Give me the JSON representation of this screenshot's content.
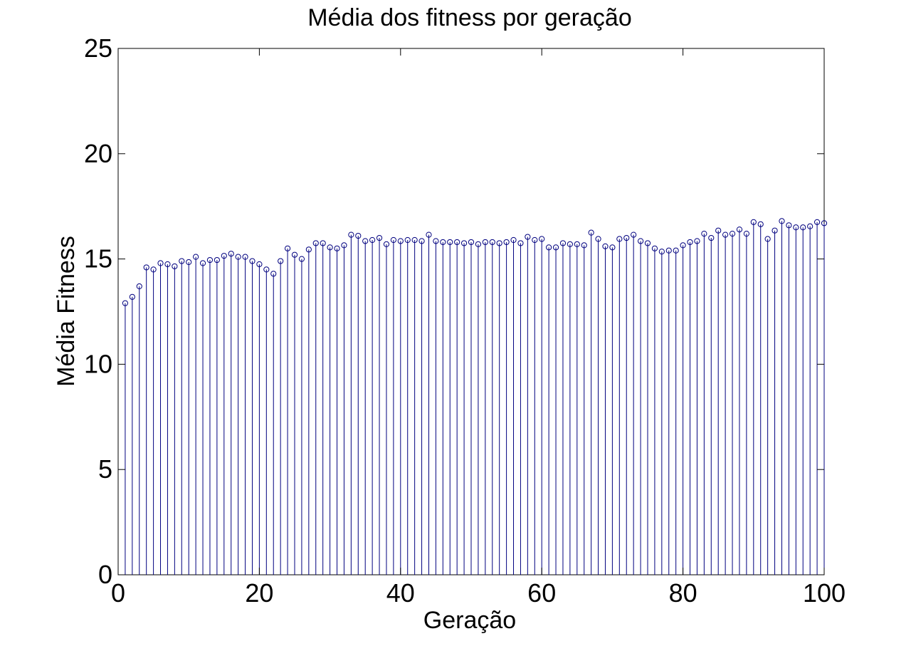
{
  "chart_data": {
    "type": "stem",
    "title": "Média dos fitness por geração",
    "xlabel": "Geração",
    "ylabel": "Média Fitness",
    "xlim": [
      0,
      100
    ],
    "ylim": [
      0,
      25
    ],
    "xticks": [
      "0",
      "20",
      "40",
      "60",
      "80",
      "100"
    ],
    "yticks": [
      "0",
      "5",
      "10",
      "15",
      "20",
      "25"
    ],
    "grid": false,
    "marker": "circle",
    "color": "#00007f",
    "x": [
      1,
      2,
      3,
      4,
      5,
      6,
      7,
      8,
      9,
      10,
      11,
      12,
      13,
      14,
      15,
      16,
      17,
      18,
      19,
      20,
      21,
      22,
      23,
      24,
      25,
      26,
      27,
      28,
      29,
      30,
      31,
      32,
      33,
      34,
      35,
      36,
      37,
      38,
      39,
      40,
      41,
      42,
      43,
      44,
      45,
      46,
      47,
      48,
      49,
      50,
      51,
      52,
      53,
      54,
      55,
      56,
      57,
      58,
      59,
      60,
      61,
      62,
      63,
      64,
      65,
      66,
      67,
      68,
      69,
      70,
      71,
      72,
      73,
      74,
      75,
      76,
      77,
      78,
      79,
      80,
      81,
      82,
      83,
      84,
      85,
      86,
      87,
      88,
      89,
      90,
      91,
      92,
      93,
      94,
      95,
      96,
      97,
      98,
      99,
      100
    ],
    "y": [
      12.9,
      13.2,
      13.7,
      14.6,
      14.5,
      14.8,
      14.75,
      14.65,
      14.9,
      14.85,
      15.1,
      14.8,
      14.95,
      14.95,
      15.15,
      15.25,
      15.1,
      15.1,
      14.9,
      14.75,
      14.5,
      14.3,
      14.9,
      15.5,
      15.2,
      15.0,
      15.45,
      15.75,
      15.75,
      15.55,
      15.5,
      15.65,
      16.15,
      16.1,
      15.85,
      15.9,
      16.0,
      15.7,
      15.9,
      15.85,
      15.9,
      15.9,
      15.85,
      16.15,
      15.85,
      15.8,
      15.8,
      15.8,
      15.75,
      15.8,
      15.7,
      15.8,
      15.8,
      15.75,
      15.8,
      15.9,
      15.75,
      16.05,
      15.9,
      15.95,
      15.55,
      15.55,
      15.75,
      15.7,
      15.7,
      15.65,
      16.25,
      15.95,
      15.6,
      15.55,
      15.95,
      16.0,
      16.15,
      15.85,
      15.75,
      15.5,
      15.35,
      15.4,
      15.4,
      15.65,
      15.8,
      15.85,
      16.2,
      16.0,
      16.35,
      16.15,
      16.2,
      16.4,
      16.2,
      16.75,
      16.65,
      15.95,
      16.35,
      16.8,
      16.6,
      16.5,
      16.5,
      16.55,
      16.75,
      16.7
    ]
  }
}
